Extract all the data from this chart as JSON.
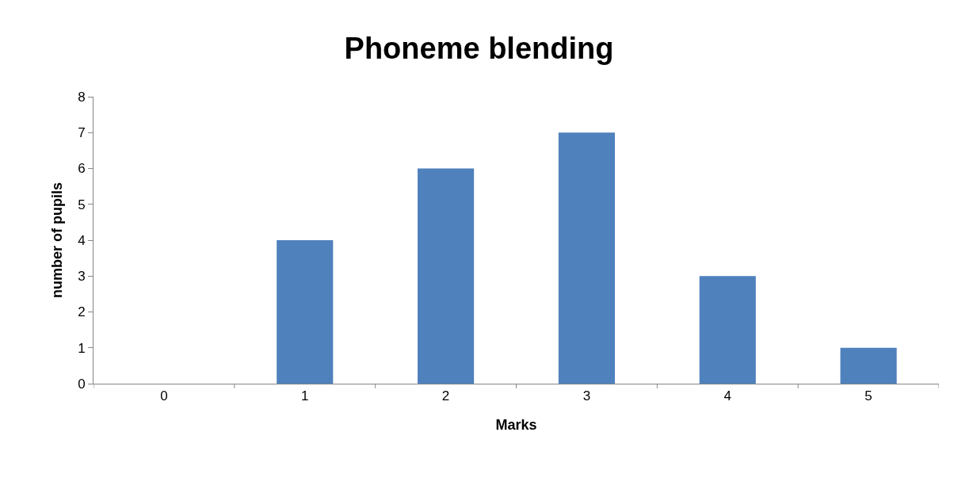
{
  "chart_data": {
    "type": "bar",
    "title": "Phoneme blending",
    "xlabel": "Marks",
    "ylabel": "number of pupils",
    "categories": [
      "0",
      "1",
      "2",
      "3",
      "4",
      "5"
    ],
    "values": [
      0,
      4,
      6,
      7,
      3,
      1
    ],
    "color": "#4f81bd",
    "ylim": [
      0,
      8
    ],
    "yticks": [
      0,
      1,
      2,
      3,
      4,
      5,
      6,
      7,
      8
    ],
    "grid": false,
    "legend": false
  }
}
